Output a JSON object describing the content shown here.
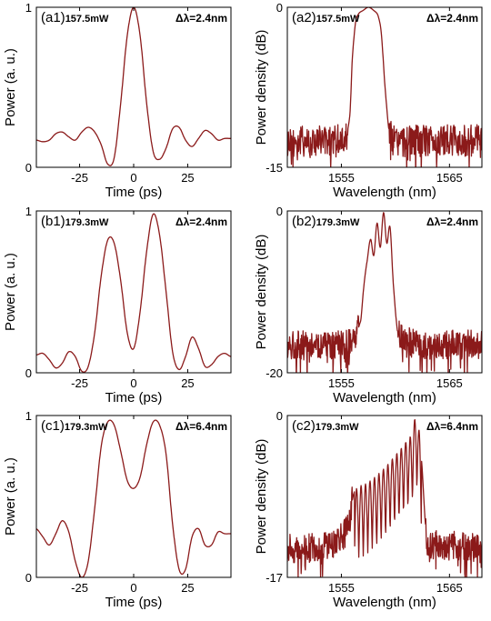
{
  "figure": {
    "line_color": "#8b1a1a"
  },
  "chart_data": [
    {
      "id": "a1",
      "type": "line",
      "panel_label": "(a1)",
      "power_label": "157.5mW",
      "delta_label": "Δλ=2.4nm",
      "xlabel": "Time (ps)",
      "ylabel": "Power (a. u.)",
      "xlim": [
        -45,
        45
      ],
      "ylim": [
        0,
        1
      ],
      "xticks": [
        -25,
        0,
        25
      ],
      "yticks": [
        0,
        1
      ],
      "xtick_labels": [
        "-25",
        "0",
        "25"
      ],
      "ytick_labels": [
        "0",
        "1"
      ],
      "x": [
        -45,
        -42,
        -39,
        -36,
        -33,
        -30,
        -27,
        -24,
        -21,
        -18,
        -15,
        -12,
        -9,
        -6,
        -3,
        0,
        3,
        6,
        9,
        12,
        15,
        18,
        21,
        24,
        27,
        30,
        33,
        36,
        39,
        42,
        45
      ],
      "y": [
        0.17,
        0.16,
        0.17,
        0.21,
        0.22,
        0.19,
        0.17,
        0.22,
        0.25,
        0.22,
        0.14,
        0.02,
        0.06,
        0.4,
        0.82,
        1.0,
        0.82,
        0.4,
        0.1,
        0.05,
        0.12,
        0.24,
        0.25,
        0.17,
        0.13,
        0.18,
        0.23,
        0.21,
        0.17,
        0.18,
        0.18
      ]
    },
    {
      "id": "a2",
      "type": "line",
      "panel_label": "(a2)",
      "power_label": "157.5mW",
      "delta_label": "Δλ=2.4nm",
      "xlabel": "Wavelength (nm)",
      "ylabel": "Power density (dB)",
      "xlim": [
        1550,
        1568
      ],
      "ylim": [
        -15,
        0
      ],
      "xticks": [
        1555,
        1565
      ],
      "yticks": [
        -15,
        0
      ],
      "xtick_labels": [
        "1555",
        "1565"
      ],
      "ytick_labels": [
        "-15",
        "0"
      ],
      "x": [
        1550,
        1552,
        1554,
        1555.4,
        1555.8,
        1556.0,
        1556.3,
        1556.6,
        1557,
        1557.5,
        1558,
        1558.4,
        1558.7,
        1559,
        1559.4,
        1560,
        1562,
        1564,
        1566,
        1568
      ],
      "y": [
        -12.5,
        -12.5,
        -12.5,
        -12.2,
        -10.0,
        -5.0,
        -1.5,
        -0.6,
        -0.3,
        0.0,
        -0.3,
        -0.8,
        -2.5,
        -7.0,
        -11.5,
        -12.5,
        -12.5,
        -12.5,
        -12.5,
        -12.5
      ],
      "noise_range": [
        1550,
        1555.6,
        1559.4,
        1568
      ],
      "noise_amplitude": 1.5
    },
    {
      "id": "b1",
      "type": "line",
      "panel_label": "(b1)",
      "power_label": "179.3mW",
      "delta_label": "Δλ=2.4nm",
      "xlabel": "Time (ps)",
      "ylabel": "Power (a. u.)",
      "xlim": [
        -45,
        45
      ],
      "ylim": [
        0,
        1
      ],
      "xticks": [
        -25,
        0,
        25
      ],
      "yticks": [
        0,
        1
      ],
      "xtick_labels": [
        "-25",
        "0",
        "25"
      ],
      "ytick_labels": [
        "0",
        "1"
      ],
      "x": [
        -45,
        -42,
        -39,
        -36,
        -33,
        -30,
        -27,
        -24,
        -21,
        -18,
        -15,
        -12,
        -9,
        -6,
        -3,
        0,
        3,
        6,
        9,
        12,
        15,
        18,
        21,
        24,
        27,
        30,
        33,
        36,
        39,
        42,
        45
      ],
      "y": [
        0.11,
        0.12,
        0.08,
        0.03,
        0.06,
        0.13,
        0.1,
        0.01,
        0.04,
        0.25,
        0.6,
        0.82,
        0.8,
        0.57,
        0.25,
        0.15,
        0.38,
        0.75,
        0.98,
        0.85,
        0.5,
        0.13,
        0.02,
        0.1,
        0.22,
        0.15,
        0.04,
        0.05,
        0.1,
        0.12,
        0.1
      ]
    },
    {
      "id": "b2",
      "type": "line",
      "panel_label": "(b2)",
      "power_label": "179.3mW",
      "delta_label": "Δλ=2.4nm",
      "xlabel": "Wavelength (nm)",
      "ylabel": "Power density (dB)",
      "xlim": [
        1550,
        1568
      ],
      "ylim": [
        -20,
        0
      ],
      "xticks": [
        1555,
        1565
      ],
      "yticks": [
        -20,
        0
      ],
      "xtick_labels": [
        "1555",
        "1565"
      ],
      "ytick_labels": [
        "-20",
        "0"
      ],
      "x": [
        1550,
        1552,
        1554,
        1556,
        1556.8,
        1557.1,
        1557.4,
        1557.7,
        1558,
        1558.3,
        1558.6,
        1558.9,
        1559.2,
        1559.5,
        1559.8,
        1560.2,
        1562,
        1564,
        1566,
        1568
      ],
      "y": [
        -16.5,
        -16.5,
        -16.5,
        -16.3,
        -13.5,
        -9.0,
        -6.0,
        -3.5,
        -5.5,
        -1.5,
        -4.5,
        -0.2,
        -4.0,
        -2.0,
        -9.0,
        -15.0,
        -16.5,
        -16.5,
        -16.5,
        -16.5
      ],
      "noise_range": [
        1550,
        1556.6,
        1560.2,
        1568
      ],
      "noise_amplitude": 1.8
    },
    {
      "id": "c1",
      "type": "line",
      "panel_label": "(c1)",
      "power_label": "179.3mW",
      "delta_label": "Δλ=6.4nm",
      "xlabel": "Time (ps)",
      "ylabel": "Power (a. u.)",
      "xlim": [
        -45,
        45
      ],
      "ylim": [
        0,
        1
      ],
      "xticks": [
        -25,
        0,
        25
      ],
      "yticks": [
        0,
        1
      ],
      "xtick_labels": [
        "-25",
        "0",
        "25"
      ],
      "ytick_labels": [
        "0",
        "1"
      ],
      "x": [
        -45,
        -42,
        -39,
        -36,
        -33,
        -30,
        -27,
        -24,
        -21,
        -18,
        -15,
        -12,
        -9,
        -6,
        -3,
        0,
        3,
        6,
        9,
        12,
        15,
        18,
        21,
        24,
        27,
        30,
        33,
        36,
        39,
        42,
        45
      ],
      "y": [
        0.3,
        0.25,
        0.2,
        0.27,
        0.35,
        0.28,
        0.1,
        0.0,
        0.1,
        0.43,
        0.81,
        0.96,
        0.94,
        0.78,
        0.6,
        0.55,
        0.62,
        0.82,
        0.96,
        0.94,
        0.76,
        0.33,
        0.05,
        0.05,
        0.25,
        0.3,
        0.2,
        0.2,
        0.28,
        0.27,
        0.27
      ]
    },
    {
      "id": "c2",
      "type": "line",
      "panel_label": "(c2)",
      "power_label": "179.3mW",
      "delta_label": "Δλ=6.4nm",
      "xlabel": "Wavelength (nm)",
      "ylabel": "Power density (dB)",
      "xlim": [
        1550,
        1568
      ],
      "ylim": [
        -17,
        0
      ],
      "xticks": [
        1555,
        1565
      ],
      "yticks": [
        -17,
        0
      ],
      "xtick_labels": [
        "1555",
        "1565"
      ],
      "ytick_labels": [
        "-17",
        "0"
      ],
      "x": [
        1550,
        1552,
        1554,
        1555.5,
        1556.2,
        1557.5,
        1559,
        1560.5,
        1561.5,
        1561.9,
        1562.3,
        1562.9,
        1564,
        1566,
        1568
      ],
      "y": [
        -14.0,
        -14.0,
        -13.5,
        -12.0,
        -8.0,
        -7.0,
        -5.5,
        -3.5,
        -2.0,
        -0.2,
        -3.0,
        -13.0,
        -13.5,
        -13.8,
        -14.0
      ],
      "fringe_range": [
        1556.2,
        1562.4
      ],
      "fringe_count": 15,
      "noise_range": [
        1550,
        1556.0,
        1562.8,
        1568
      ],
      "noise_amplitude": 1.6
    }
  ]
}
